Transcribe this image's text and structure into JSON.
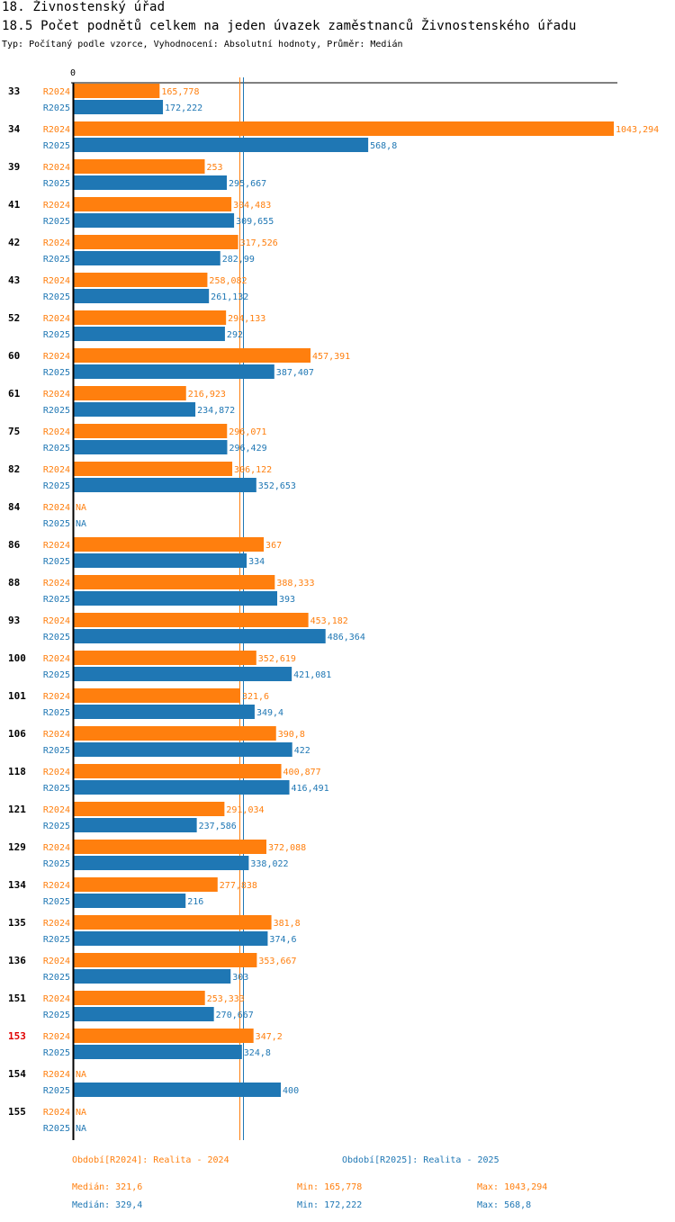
{
  "header": {
    "section": "18. Živnostenský úřad",
    "title": "18.5 Počet podnětů celkem na jeden úvazek zaměstnanců Živnostenského úřadu",
    "subtitle": "Typ: Počítaný podle vzorce, Vyhodnocení: Absolutní hodnoty, Průměr: Medián"
  },
  "colors": {
    "R2024": "#ff7f0e",
    "R2025": "#1f77b4",
    "highlight": "#e00000",
    "axis": "#000000"
  },
  "chart_data": {
    "type": "bar",
    "orientation": "horizontal",
    "title": "18.5 Počet podnětů celkem na jeden úvazek zaměstnanců Živnostenského úřadu",
    "axis_zero_label": "0",
    "xlim": [
      0,
      1043.294
    ],
    "highlighted_category": "153",
    "categories": [
      "33",
      "34",
      "39",
      "41",
      "42",
      "43",
      "52",
      "60",
      "61",
      "75",
      "82",
      "84",
      "86",
      "88",
      "93",
      "100",
      "101",
      "106",
      "118",
      "121",
      "129",
      "134",
      "135",
      "136",
      "151",
      "153",
      "154",
      "155"
    ],
    "series": [
      {
        "name": "R2024",
        "values": [
          165.778,
          1043.294,
          253,
          304.483,
          317.526,
          258.082,
          294.133,
          457.391,
          216.923,
          296.071,
          306.122,
          null,
          367,
          388.333,
          453.182,
          352.619,
          321.6,
          390.8,
          400.877,
          291.034,
          372.088,
          277.838,
          381.8,
          353.667,
          253.333,
          347.2,
          null,
          null
        ],
        "labels": [
          "165,778",
          "1043,294",
          "253",
          "304,483",
          "317,526",
          "258,082",
          "294,133",
          "457,391",
          "216,923",
          "296,071",
          "306,122",
          "NA",
          "367",
          "388,333",
          "453,182",
          "352,619",
          "321,6",
          "390,8",
          "400,877",
          "291,034",
          "372,088",
          "277,838",
          "381,8",
          "353,667",
          "253,333",
          "347,2",
          "NA",
          "NA"
        ],
        "median": 321.6
      },
      {
        "name": "R2025",
        "values": [
          172.222,
          568.8,
          295.667,
          309.655,
          282.99,
          261.132,
          292,
          387.407,
          234.872,
          296.429,
          352.653,
          null,
          334,
          393,
          486.364,
          421.081,
          349.4,
          422,
          416.491,
          237.586,
          338.022,
          216,
          374.6,
          303,
          270.667,
          324.8,
          400,
          null
        ],
        "labels": [
          "172,222",
          "568,8",
          "295,667",
          "309,655",
          "282,99",
          "261,132",
          "292",
          "387,407",
          "234,872",
          "296,429",
          "352,653",
          "NA",
          "334",
          "393",
          "486,364",
          "421,081",
          "349,4",
          "422",
          "416,491",
          "237,586",
          "338,022",
          "216",
          "374,6",
          "303",
          "270,667",
          "324,8",
          "400",
          "NA"
        ],
        "median": 329.4
      }
    ]
  },
  "legend": {
    "R2024": "Období[R2024]: Realita - 2024",
    "R2025": "Období[R2025]: Realita - 2025"
  },
  "stats": {
    "R2024": {
      "median": "Medián: 321,6",
      "min": "Min: 165,778",
      "max": "Max: 1043,294"
    },
    "R2025": {
      "median": "Medián: 329,4",
      "min": "Min: 172,222",
      "max": "Max: 568,8"
    }
  }
}
